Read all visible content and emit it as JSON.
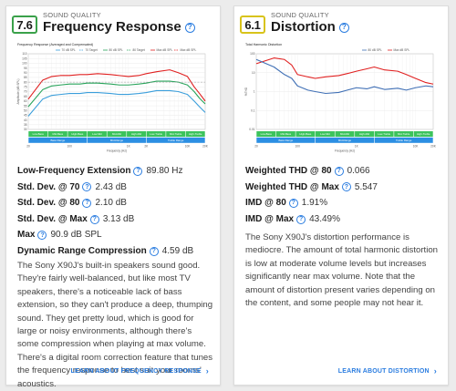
{
  "colors": {
    "accent": "#2b7de0",
    "score_good": "#3aa14a",
    "score_mid": "#d8c31a"
  },
  "frequency_response": {
    "score": "7.6",
    "overline": "SOUND QUALITY",
    "title": "Frequency Response",
    "chart_data": {
      "type": "line",
      "title": "Frequency Response (Averaged and Compensated)",
      "xlabel": "Frequency (Hz)",
      "ylabel": "Amplitude (dB SPL)",
      "x_scale": "log",
      "xlim": [
        20,
        20000
      ],
      "ylim": [
        30,
        110
      ],
      "x_ticks": [
        "20",
        "100",
        "1K",
        "2K",
        "10K",
        "20K"
      ],
      "y_ticks": [
        "110",
        "105",
        "100",
        "95",
        "90",
        "85",
        "80",
        "75",
        "70",
        "65",
        "60",
        "55",
        "50",
        "45",
        "40",
        "35",
        "30"
      ],
      "legend": [
        "70 dB SPL",
        "70 Target",
        "80 dB SPL",
        "80 Target",
        "Max dB SPL",
        "Max dB SPL"
      ],
      "series": [
        {
          "name": "Max dB SPL",
          "color": "#e02020",
          "x": [
            20,
            35,
            50,
            70,
            100,
            150,
            200,
            300,
            500,
            700,
            1000,
            1500,
            2000,
            3000,
            5000,
            7000,
            10000,
            13000,
            16000,
            20000
          ],
          "y": [
            62,
            82,
            86,
            87,
            87,
            88,
            88,
            89,
            88,
            87,
            86,
            87,
            89,
            91,
            93,
            90,
            86,
            75,
            68,
            60
          ]
        },
        {
          "name": "80 dB SPL",
          "color": "#27a35a",
          "x": [
            20,
            35,
            50,
            70,
            100,
            150,
            200,
            300,
            500,
            700,
            1000,
            1500,
            2000,
            3000,
            5000,
            7000,
            10000,
            13000,
            16000,
            20000
          ],
          "y": [
            54,
            72,
            76,
            77,
            78,
            78,
            79,
            79,
            78,
            77,
            77,
            78,
            79,
            81,
            81,
            80,
            77,
            70,
            63,
            57
          ]
        },
        {
          "name": "70 dB SPL",
          "color": "#3a9edb",
          "x": [
            20,
            35,
            50,
            70,
            100,
            150,
            200,
            300,
            500,
            700,
            1000,
            1500,
            2000,
            3000,
            5000,
            7000,
            10000,
            13000,
            16000,
            20000
          ],
          "y": [
            44,
            62,
            66,
            67,
            68,
            68,
            69,
            69,
            68,
            67,
            67,
            68,
            69,
            71,
            71,
            70,
            67,
            60,
            54,
            48
          ]
        },
        {
          "name": "Target",
          "color": "#999999",
          "dashed": true,
          "x": [
            20,
            20000
          ],
          "y": [
            80,
            80
          ]
        }
      ],
      "bands": {
        "row1": [
          "Low-Bass",
          "Mid-Bass",
          "High-Bass",
          "Low-Mid",
          "Mid-Mid",
          "High-Mid",
          "Low-Treble",
          "Mid-Treble",
          "High-Treble"
        ],
        "row2": [
          "Bass Range",
          "Mid-Range",
          "Treble Range"
        ]
      }
    },
    "measurements": [
      {
        "label": "Low-Frequency Extension",
        "value": "89.80 Hz"
      },
      {
        "label": "Std. Dev. @ 70",
        "value": "2.43 dB"
      },
      {
        "label": "Std. Dev. @ 80",
        "value": "2.10 dB"
      },
      {
        "label": "Std. Dev. @ Max",
        "value": "3.13 dB"
      },
      {
        "label": "Max",
        "value": "90.9 dB SPL"
      },
      {
        "label": "Dynamic Range Compression",
        "value": "4.59 dB"
      }
    ],
    "description": "The Sony X90J's built-in speakers sound good. They're fairly well-balanced, but like most TV speakers, there's a noticeable lack of bass extension, so they can't produce a deep, thumping sound. They get pretty loud, which is good for large or noisy environments, although there's some compression when playing at max volume. There's a digital room correction feature that tunes the frequency response to best suit your rooms' acoustics.",
    "link": "LEARN ABOUT FREQUENCY RESPONSE"
  },
  "distortion": {
    "score": "6.1",
    "overline": "SOUND QUALITY",
    "title": "Distortion",
    "chart_data": {
      "type": "line",
      "title": "Total Harmonic Distortion",
      "xlabel": "Frequency (Hz)",
      "ylabel": "%THD",
      "x_scale": "log",
      "y_scale": "log",
      "xlim": [
        20,
        20000
      ],
      "ylim": [
        0.01,
        100
      ],
      "x_ticks": [
        "20",
        "100",
        "1K",
        "10K",
        "20K"
      ],
      "y_ticks": [
        "100",
        "10",
        "1",
        "0.1",
        "0.01"
      ],
      "legend": [
        "80 dB SPL",
        "Max dB SPL"
      ],
      "series": [
        {
          "name": "Max dB SPL",
          "color": "#e02020",
          "x": [
            20,
            40,
            60,
            80,
            100,
            150,
            200,
            300,
            500,
            700,
            1000,
            1500,
            2000,
            3000,
            5000,
            7000,
            10000,
            15000,
            20000
          ],
          "y": [
            30,
            60,
            50,
            25,
            8,
            6,
            5,
            6,
            7,
            9,
            12,
            16,
            20,
            14,
            12,
            8,
            5,
            3,
            2.5
          ]
        },
        {
          "name": "80 dB SPL",
          "color": "#3f6fb5",
          "x": [
            20,
            40,
            60,
            80,
            100,
            150,
            200,
            300,
            500,
            700,
            1000,
            1500,
            2000,
            3000,
            5000,
            7000,
            10000,
            15000,
            20000
          ],
          "y": [
            50,
            20,
            8,
            5,
            2,
            1.2,
            1,
            0.8,
            0.9,
            1.2,
            1.6,
            1.4,
            1.8,
            1.3,
            1.5,
            1.2,
            1.6,
            2,
            1.8
          ]
        }
      ],
      "bands": {
        "row1": [
          "Low-Bass",
          "Mid-Bass",
          "High-Bass",
          "Low-Mid",
          "Mid-Mid",
          "High-Mid",
          "Low-Treble",
          "Mid-Treble",
          "High-Treble"
        ],
        "row2": [
          "Bass Range",
          "Mid-Range",
          "Treble Range"
        ]
      }
    },
    "measurements": [
      {
        "label": "Weighted THD @ 80",
        "value": "0.066"
      },
      {
        "label": "Weighted THD @ Max",
        "value": "5.547"
      },
      {
        "label": "IMD @ 80",
        "value": "1.91%"
      },
      {
        "label": "IMD @ Max",
        "value": "43.49%"
      }
    ],
    "description": "The Sony X90J's distortion performance is mediocre. The amount of total harmonic distortion is low at moderate volume levels but increases significantly near max volume. Note that the amount of distortion present varies depending on the content, and some people may not hear it.",
    "link": "LEARN ABOUT DISTORTION"
  }
}
